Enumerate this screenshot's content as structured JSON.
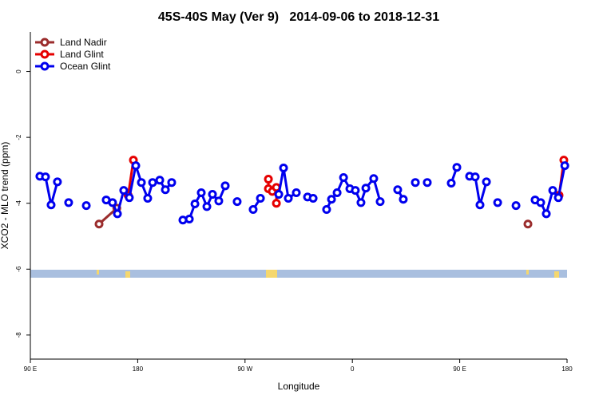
{
  "chart_data": {
    "type": "line",
    "title": "45S-40S May (Ver 9)   2014-09-06 to 2018-12-31",
    "x_label": "Longitude",
    "y_label": "XCO2 - MLO trend (ppm)",
    "xlim": [
      -270,
      180
    ],
    "ylim": [
      -8.73,
      1.2
    ],
    "xticks": [
      {
        "value": -270,
        "label": "90 E"
      },
      {
        "value": -180,
        "label": "180"
      },
      {
        "value": -90,
        "label": "90 W"
      },
      0,
      {
        "value": 90,
        "label": "90 E"
      },
      {
        "value": 180,
        "label": "180"
      }
    ],
    "yticks": [
      0,
      -2,
      -4,
      -6,
      -8
    ],
    "legend": "top-left",
    "series": [
      {
        "name": "Land Nadir",
        "color": "#9b2d2d",
        "x": [
          -212.4,
          -197.5,
          null,
          147.2
        ],
        "values": [
          -4.63,
          -4.15,
          null,
          -4.63
        ]
      },
      {
        "name": "Land Glint",
        "color": "#e60000",
        "x": [
          -188.0,
          -183.6,
          null,
          -70.4,
          -70.4,
          -67.1,
          -63.7,
          -63.7,
          null,
          173.3,
          177.3
        ],
        "values": [
          -3.76,
          -2.69,
          null,
          -3.27,
          -3.56,
          -3.64,
          -3.52,
          -4.0,
          null,
          -3.76,
          -2.69
        ]
      },
      {
        "name": "Ocean Glint",
        "color": "#0000ee",
        "x": [
          -262.0,
          -257.3,
          -252.6,
          -247.3,
          null,
          -237.9,
          null,
          -223.1,
          null,
          -206.4,
          -201.1,
          -197.0,
          -191.7,
          -187.0,
          -181.6,
          -176.9,
          -171.6,
          -167.5,
          -161.5,
          -156.8,
          -151.5,
          null,
          -142.1,
          -136.7,
          -132.0,
          -126.7,
          -122.0,
          -117.3,
          -112.0,
          -106.6,
          null,
          -96.6,
          null,
          -83.2,
          -77.1,
          null,
          -61.7,
          -57.7,
          -53.7,
          -47.0,
          null,
          -37.6,
          -32.9,
          null,
          -21.6,
          -17.5,
          -12.8,
          -7.4,
          -2.1,
          2.5,
          7.2,
          11.3,
          17.9,
          23.3,
          null,
          38.0,
          42.7,
          null,
          52.8,
          null,
          62.8,
          null,
          82.9,
          87.6,
          null,
          98.3,
          103.0,
          107.0,
          112.4,
          null,
          121.8,
          null,
          137.2,
          null,
          153.2,
          157.9,
          162.6,
          168.0,
          172.7,
          178.1
        ],
        "values": [
          -3.18,
          -3.2,
          -4.05,
          -3.35,
          null,
          -3.98,
          null,
          -4.07,
          null,
          -3.9,
          -3.98,
          -4.32,
          -3.61,
          -3.83,
          -2.86,
          -3.37,
          -3.85,
          -3.37,
          -3.3,
          -3.59,
          -3.37,
          null,
          -4.51,
          -4.48,
          -4.02,
          -3.68,
          -4.1,
          -3.73,
          -3.93,
          -3.47,
          null,
          -3.95,
          null,
          -4.19,
          -3.85,
          null,
          -3.73,
          -2.93,
          -3.85,
          -3.68,
          null,
          -3.81,
          -3.85,
          null,
          -4.19,
          -3.88,
          -3.68,
          -3.22,
          -3.56,
          -3.61,
          -3.98,
          -3.54,
          -3.25,
          -3.95,
          null,
          -3.59,
          -3.88,
          null,
          -3.37,
          null,
          -3.37,
          null,
          -3.39,
          -2.91,
          null,
          -3.18,
          -3.2,
          -4.05,
          -3.35,
          null,
          -3.98,
          null,
          -4.07,
          null,
          -3.9,
          -3.98,
          -4.32,
          -3.61,
          -3.83,
          -2.86
        ]
      }
    ]
  }
}
